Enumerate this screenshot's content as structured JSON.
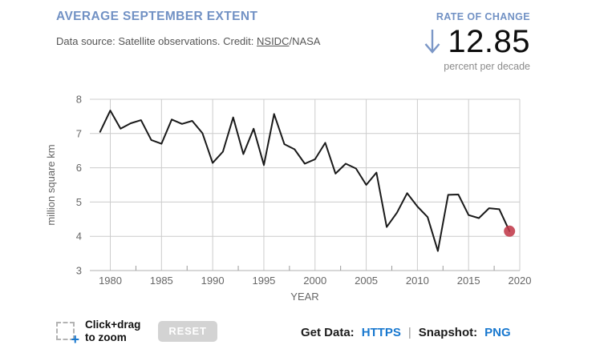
{
  "header": {
    "title": "AVERAGE SEPTEMBER EXTENT",
    "data_source_prefix": "Data source: Satellite observations. Credit: ",
    "credit_link": "NSIDC",
    "credit_suffix": "/NASA"
  },
  "rate": {
    "label": "RATE OF CHANGE",
    "value": "12.85",
    "unit": "percent per decade",
    "direction": "down"
  },
  "chart_data": {
    "type": "line",
    "title": "Average September Extent",
    "xlabel": "YEAR",
    "ylabel": "million square km",
    "xlim": [
      1978,
      2020
    ],
    "ylim": [
      3,
      8
    ],
    "x_ticks": [
      1980,
      1985,
      1990,
      1995,
      2000,
      2005,
      2010,
      2015,
      2020
    ],
    "y_ticks": [
      3,
      4,
      5,
      6,
      7,
      8
    ],
    "grid": true,
    "legend": "none",
    "line_color": "#1a1a1a",
    "grid_color": "#cccccc",
    "endpoint_color": "#c13a4a",
    "x": [
      1979,
      1980,
      1981,
      1982,
      1983,
      1984,
      1985,
      1986,
      1987,
      1988,
      1989,
      1990,
      1991,
      1992,
      1993,
      1994,
      1995,
      1996,
      1997,
      1998,
      1999,
      2000,
      2001,
      2002,
      2003,
      2004,
      2005,
      2006,
      2007,
      2008,
      2009,
      2010,
      2011,
      2012,
      2013,
      2014,
      2015,
      2016,
      2017,
      2018,
      2019
    ],
    "values": [
      7.05,
      7.67,
      7.14,
      7.3,
      7.39,
      6.81,
      6.7,
      7.41,
      7.28,
      7.37,
      7.01,
      6.14,
      6.47,
      7.47,
      6.4,
      7.14,
      6.08,
      7.57,
      6.69,
      6.54,
      6.12,
      6.25,
      6.73,
      5.83,
      6.12,
      5.98,
      5.5,
      5.86,
      4.27,
      4.69,
      5.26,
      4.87,
      4.56,
      3.57,
      5.21,
      5.22,
      4.62,
      4.53,
      4.82,
      4.79,
      4.15
    ]
  },
  "footer": {
    "zoom_hint_line1": "Click+drag",
    "zoom_hint_line2": "to zoom",
    "plus_glyph": "+",
    "reset_label": "RESET",
    "get_data_label": "Get Data:",
    "https_link": "HTTPS",
    "separator": "|",
    "snapshot_label": "Snapshot:",
    "png_link": "PNG"
  },
  "colors": {
    "accent_blue": "#7191c4",
    "link_blue": "#1878cf",
    "endpoint_red": "#c13a4a"
  }
}
